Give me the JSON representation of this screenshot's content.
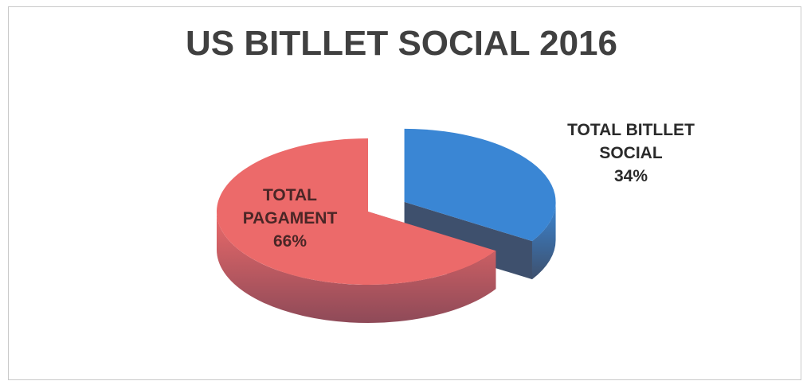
{
  "chart_data": {
    "type": "pie",
    "title": "US BITLLET SOCIAL 2016",
    "three_d": true,
    "exploded_slice": "TOTAL BITLLET SOCIAL",
    "slices": [
      {
        "name": "TOTAL BITLLET SOCIAL",
        "value": 34,
        "label_lines": [
          "TOTAL BITLLET",
          "SOCIAL",
          "34%"
        ],
        "color": "#3a86d4",
        "side_color": "#3e506d",
        "label_color": "#2a2a2a"
      },
      {
        "name": "TOTAL PAGAMENT",
        "value": 66,
        "label_lines": [
          "TOTAL",
          "PAGAMENT",
          "66%"
        ],
        "color": "#ec6a6a",
        "side_color": "#8e4a58",
        "label_color": "#4a2626"
      }
    ],
    "value_format": "percent"
  }
}
